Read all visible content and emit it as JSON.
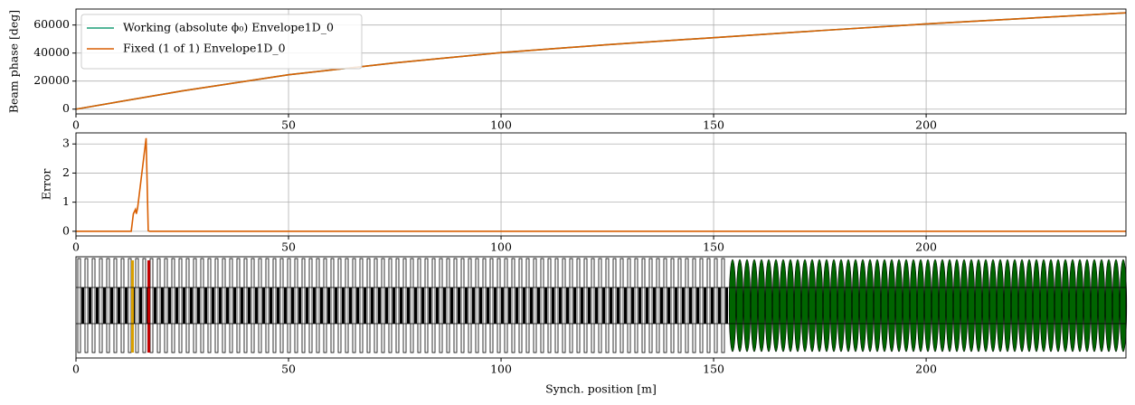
{
  "chart_data": [
    {
      "type": "line",
      "ylabel": "Beam phase [deg]",
      "x": [
        0,
        25,
        50,
        75,
        100,
        125,
        150,
        175,
        200,
        225,
        247
      ],
      "series": [
        {
          "name": "Working (absolute ϕ₀) Envelope1D_0",
          "color": "#1b9e77",
          "values": [
            0,
            13000,
            24500,
            33000,
            40300,
            46000,
            51000,
            56000,
            60800,
            65000,
            68700
          ]
        },
        {
          "name": "Fixed (1 of 1) Envelope1D_0",
          "color": "#d95f02",
          "values": [
            0,
            13000,
            24500,
            33000,
            40300,
            46000,
            51000,
            56000,
            60800,
            65000,
            68700
          ]
        }
      ],
      "xlim": [
        0,
        247
      ],
      "xticks": [
        0,
        50,
        100,
        150,
        200
      ],
      "ylim": [
        -3400,
        71400
      ],
      "yticks": [
        0,
        20000,
        40000,
        60000
      ],
      "grid": true,
      "legend": "upper left"
    },
    {
      "type": "line",
      "ylabel": "Error",
      "x": [
        0,
        13,
        13.5,
        14,
        14.2,
        14.5,
        16.5,
        17,
        17.3,
        247
      ],
      "series": [
        {
          "name": "Fixed (1 of 1) Envelope1D_0",
          "color": "#d95f02",
          "values": [
            0,
            0,
            0.6,
            0.75,
            0.6,
            0.8,
            3.2,
            0.02,
            0,
            0
          ]
        }
      ],
      "xlim": [
        0,
        247
      ],
      "xticks": [
        0,
        50,
        100,
        150,
        200
      ],
      "ylim": [
        -0.16,
        3.38
      ],
      "yticks": [
        0,
        1,
        2,
        3
      ],
      "grid": true
    },
    {
      "type": "structure",
      "xlabel": "Synch. position [m]",
      "xlim": [
        0,
        247
      ],
      "xticks": [
        0,
        50,
        100,
        150,
        200
      ]
    }
  ]
}
